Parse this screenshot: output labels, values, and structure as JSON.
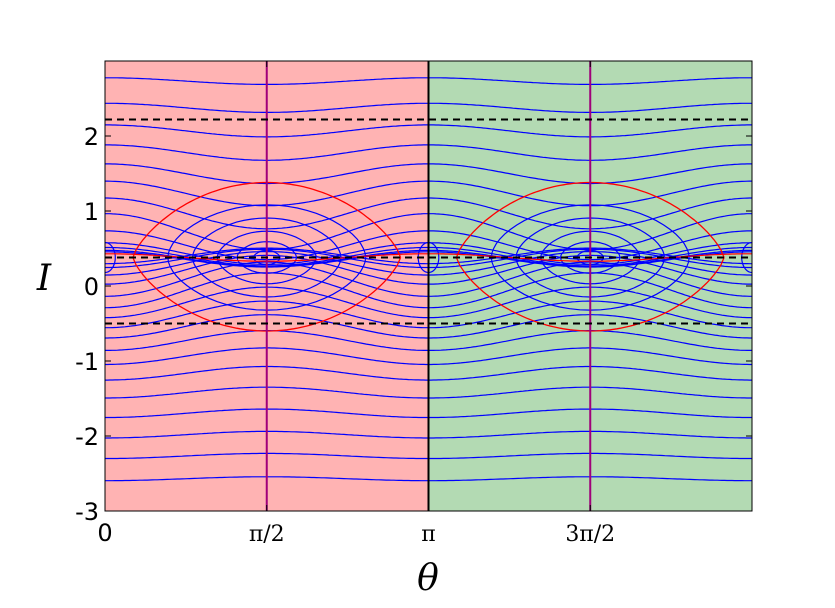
{
  "chart_data": {
    "type": "line",
    "title": "",
    "xlabel": "θ",
    "ylabel": "I",
    "xlim": [
      0,
      6.2832
    ],
    "ylim": [
      -3,
      3
    ],
    "x_ticks": [
      {
        "value": 0,
        "label": "0"
      },
      {
        "value": 1.5708,
        "label": "π/2"
      },
      {
        "value": 3.1416,
        "label": "π"
      },
      {
        "value": 4.7124,
        "label": "3π/2"
      }
    ],
    "y_ticks": [
      {
        "value": 2,
        "label": "2"
      },
      {
        "value": 1,
        "label": "1"
      },
      {
        "value": 0,
        "label": "0"
      },
      {
        "value": -1,
        "label": "-1"
      },
      {
        "value": -2,
        "label": "-2"
      },
      {
        "value": -3,
        "label": "-3"
      }
    ],
    "grid": false,
    "regions": [
      {
        "x": [
          0,
          3.1416
        ],
        "color": "#ffb3b3"
      },
      {
        "x": [
          3.1416,
          6.2832
        ],
        "color": "#b3dab3"
      }
    ],
    "vertical_lines": [
      {
        "x": 1.5708,
        "color": "#a0007a"
      },
      {
        "x": 4.7124,
        "color": "#a0007a"
      },
      {
        "x": 3.1416,
        "color": "#000000"
      }
    ],
    "horizontal_dashed_lines": [
      2.22,
      0.38,
      -0.5
    ],
    "colors": {
      "contours": "#0000ff",
      "separatrix": "#ff0000",
      "dashed": "#000000"
    },
    "contours": {
      "level_I": [
        2.75,
        2.4,
        2.1,
        1.82,
        1.55,
        1.3,
        1.05,
        0.82,
        0.62,
        0.49,
        0.44,
        0.41,
        0.395,
        0.36,
        0.32,
        0.24,
        0.14,
        0.0,
        -0.15,
        -0.3,
        -0.45,
        -0.6,
        -0.78,
        -0.98,
        -1.2,
        -1.45,
        -1.72,
        -2.0,
        -2.28,
        -2.58
      ],
      "center_I": 0.38,
      "saddle_x": [
        0,
        3.1416,
        6.2832
      ]
    },
    "separatrix": {
      "top_I": 1.38,
      "bottom_I": -0.6,
      "mid_I": 0.38
    }
  }
}
